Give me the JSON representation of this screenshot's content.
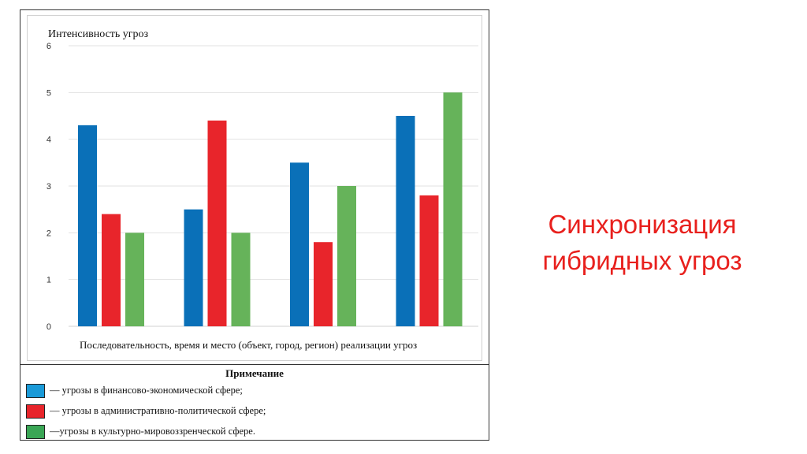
{
  "chart_data": {
    "type": "bar",
    "title": "",
    "ylabel": "Интенсивность угроз",
    "xlabel": "Последовательность, время и место (объект, город, регион)  реализации угроз",
    "ylim": [
      0,
      6
    ],
    "yticks": [
      0,
      1,
      2,
      3,
      4,
      5,
      6
    ],
    "grid": true,
    "categories": [
      "",
      "",
      "",
      ""
    ],
    "series": [
      {
        "name": "— угрозы в финансово-экономической сфере;",
        "color": "#0a70b8",
        "values": [
          4.3,
          2.5,
          3.5,
          4.5
        ]
      },
      {
        "name": "— угрозы в административно-политической сфере;",
        "color": "#e8252b",
        "values": [
          2.4,
          4.4,
          1.8,
          2.8
        ]
      },
      {
        "name": "—угрозы в культурно-мировоззренческой сфере.",
        "color": "#66b35a",
        "values": [
          2.0,
          2.0,
          3.0,
          5.0
        ]
      }
    ]
  },
  "legend": {
    "title": "Примечание",
    "swatch_colors": [
      "#1a9ad8",
      "#e8252b",
      "#3aa655"
    ]
  },
  "side_title": {
    "line1": "Синхронизация",
    "line2": "гибридных угроз",
    "color": "#e8201d"
  }
}
